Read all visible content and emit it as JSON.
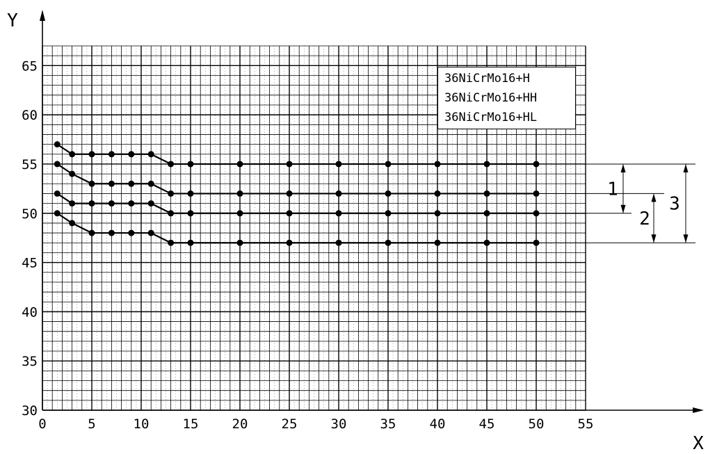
{
  "chart_data": {
    "type": "line",
    "xlabel": "X",
    "ylabel": "Y",
    "xlim": [
      0,
      55
    ],
    "ylim": [
      30,
      67
    ],
    "x_ticks": [
      0,
      5,
      10,
      15,
      20,
      25,
      30,
      35,
      40,
      45,
      50,
      55
    ],
    "y_ticks": [
      30,
      35,
      40,
      45,
      50,
      55,
      60,
      65
    ],
    "grid": true,
    "legend_position": "top-right",
    "legend": [
      "36NiCrMo16+H",
      "36NiCrMo16+HH",
      "36NiCrMo16+HL"
    ],
    "x": [
      1.5,
      3,
      5,
      7,
      9,
      11,
      13,
      15,
      20,
      25,
      30,
      35,
      40,
      45,
      50
    ],
    "series": [
      {
        "values": [
          57,
          56,
          56,
          56,
          56,
          56,
          55,
          55,
          55,
          55,
          55,
          55,
          55,
          55,
          55
        ]
      },
      {
        "values": [
          55,
          54,
          53,
          53,
          53,
          53,
          52,
          52,
          52,
          52,
          52,
          52,
          52,
          52,
          52
        ]
      },
      {
        "values": [
          52,
          51,
          51,
          51,
          51,
          51,
          50,
          50,
          50,
          50,
          50,
          50,
          50,
          50,
          50
        ]
      },
      {
        "values": [
          50,
          49,
          48,
          48,
          48,
          48,
          47,
          47,
          47,
          47,
          47,
          47,
          47,
          47,
          47
        ]
      }
    ],
    "annotations": [
      {
        "label": "1",
        "from": 55,
        "to": 50
      },
      {
        "label": "2",
        "from": 52,
        "to": 47
      },
      {
        "label": "3",
        "from": 55,
        "to": 47
      }
    ],
    "colors": {
      "line": "#000000",
      "grid": "#000000",
      "background": "#ffffff"
    }
  }
}
